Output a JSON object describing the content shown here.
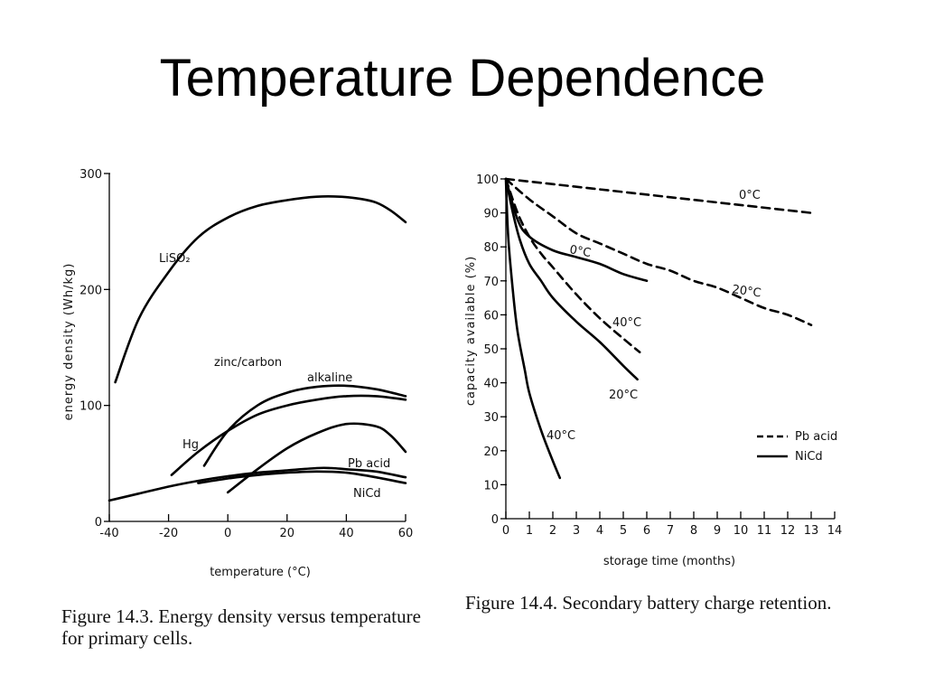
{
  "title": "Temperature Dependence",
  "chart_data": [
    {
      "type": "line",
      "title": "",
      "xlabel": "temperature (°C)",
      "ylabel": "energy density (Wh/kg)",
      "xlim": [
        -40,
        60
      ],
      "ylim": [
        0,
        300
      ],
      "x_ticks": [
        "-40",
        "-20",
        "0",
        "20",
        "40",
        "60"
      ],
      "y_ticks": [
        "0",
        "100",
        "200",
        "300"
      ],
      "caption": "Figure 14.3. Energy density versus temperature for primary cells.",
      "series": [
        {
          "name": "LiSO₂",
          "style": "solid",
          "x": [
            -38,
            -30,
            -20,
            -10,
            0,
            10,
            20,
            30,
            38,
            45,
            50,
            55,
            60
          ],
          "y": [
            120,
            175,
            215,
            245,
            262,
            272,
            277,
            280,
            280,
            278,
            275,
            268,
            258
          ]
        },
        {
          "name": "alkaline",
          "style": "solid",
          "x": [
            -8,
            0,
            10,
            20,
            30,
            40,
            50,
            60
          ],
          "y": [
            48,
            78,
            100,
            111,
            116,
            117,
            114,
            108
          ]
        },
        {
          "name": "Hg",
          "style": "solid",
          "x": [
            -19,
            -10,
            0,
            10,
            20,
            30,
            40,
            50,
            60
          ],
          "y": [
            40,
            60,
            78,
            92,
            100,
            105,
            108,
            108,
            105
          ]
        },
        {
          "name": "zinc/carbon",
          "style": "solid",
          "x": [
            0,
            10,
            20,
            30,
            40,
            50,
            55,
            60
          ],
          "y": [
            25,
            45,
            63,
            76,
            84,
            82,
            74,
            60
          ]
        },
        {
          "name": "Pb acid",
          "style": "solid",
          "x": [
            -40,
            -30,
            -20,
            -10,
            0,
            10,
            20,
            30,
            35,
            40,
            50,
            60
          ],
          "y": [
            18,
            24,
            30,
            35,
            39,
            42,
            44,
            46,
            46,
            45,
            43,
            38
          ]
        },
        {
          "name": "NiCd",
          "style": "solid",
          "x": [
            -10,
            0,
            10,
            20,
            30,
            40,
            50,
            60
          ],
          "y": [
            33,
            37,
            40,
            42,
            43,
            42,
            38,
            33
          ]
        }
      ]
    },
    {
      "type": "line",
      "title": "",
      "xlabel": "storage time (months)",
      "ylabel": "capacity available (%)",
      "xlim": [
        0,
        14
      ],
      "ylim": [
        0,
        100
      ],
      "x_ticks": [
        "0",
        "1",
        "2",
        "3",
        "4",
        "5",
        "6",
        "7",
        "8",
        "9",
        "10",
        "11",
        "12",
        "13",
        "14"
      ],
      "y_ticks": [
        "0",
        "10",
        "20",
        "30",
        "40",
        "50",
        "60",
        "70",
        "80",
        "90",
        "100"
      ],
      "legend": [
        {
          "name": "Pb acid",
          "style": "dashed"
        },
        {
          "name": "NiCd",
          "style": "solid"
        }
      ],
      "legend_position": "right",
      "caption": "Figure 14.4. Secondary battery charge retention.",
      "series": [
        {
          "name": "Pb acid",
          "label": "0°C",
          "style": "dashed",
          "x": [
            0,
            13
          ],
          "y": [
            100,
            90
          ]
        },
        {
          "name": "Pb acid",
          "label": "20°C",
          "style": "dashed",
          "x": [
            0,
            1,
            2,
            3,
            4,
            5,
            6,
            7,
            8,
            9,
            10,
            11,
            12,
            13
          ],
          "y": [
            100,
            94,
            89,
            84,
            81,
            78,
            75,
            73,
            70,
            68,
            65,
            62,
            60,
            57
          ]
        },
        {
          "name": "Pb acid",
          "label": "40°C",
          "style": "dashed",
          "x": [
            0,
            0.5,
            1,
            1.5,
            2,
            3,
            4,
            5,
            5.7
          ],
          "y": [
            100,
            90,
            83,
            78,
            74,
            66,
            59,
            53,
            49
          ]
        },
        {
          "name": "NiCd",
          "label": "0°C",
          "style": "solid",
          "x": [
            0,
            0.5,
            1,
            2,
            3,
            4,
            5,
            6
          ],
          "y": [
            100,
            88,
            83,
            79,
            77,
            75,
            72,
            70
          ]
        },
        {
          "name": "NiCd",
          "label": "20°C",
          "style": "solid",
          "x": [
            0,
            0.3,
            0.6,
            1,
            1.5,
            2,
            3,
            4,
            5,
            5.6
          ],
          "y": [
            100,
            90,
            82,
            75,
            70,
            65,
            58,
            52,
            45,
            41
          ]
        },
        {
          "name": "NiCd",
          "label": "40°C",
          "style": "solid",
          "x": [
            0,
            0.1,
            0.3,
            0.5,
            0.8,
            1,
            1.5,
            2,
            2.3
          ],
          "y": [
            100,
            83,
            67,
            55,
            44,
            37,
            26,
            17,
            12
          ]
        }
      ],
      "annotations": [
        "0°C",
        "20°C",
        "0°C",
        "40°C",
        "20°C",
        "40°C"
      ]
    }
  ]
}
